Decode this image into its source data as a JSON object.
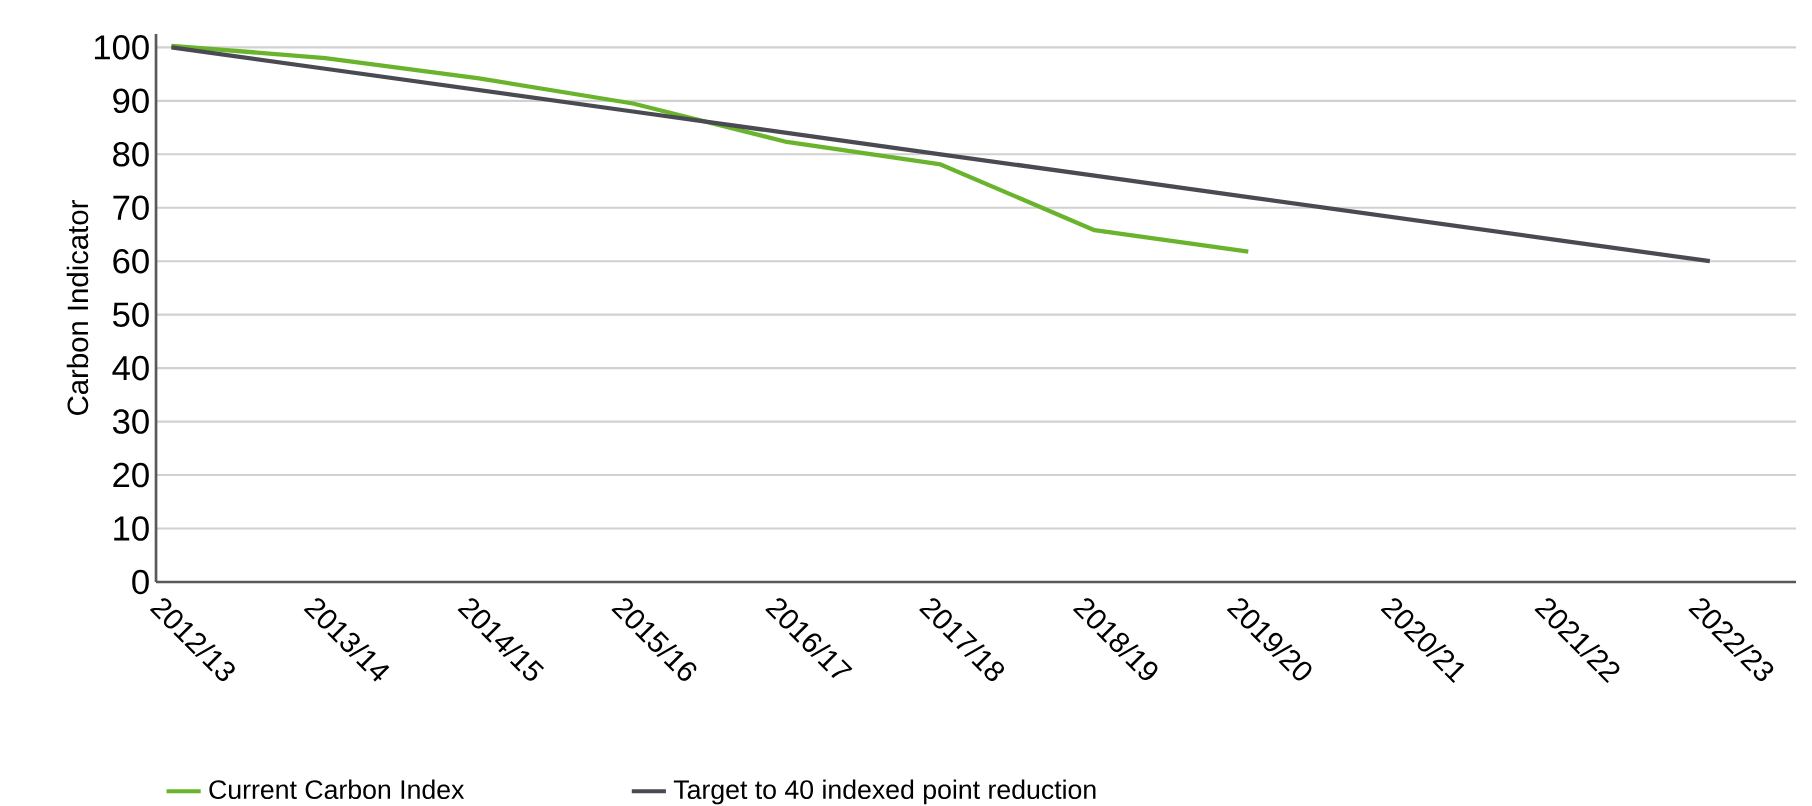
{
  "chart_data": {
    "type": "line",
    "ylabel": "Carbon Indicator",
    "categories": [
      "2012/13",
      "2013/14",
      "2014/15",
      "2015/16",
      "2016/17",
      "2017/18",
      "2018/19",
      "2019/20",
      "2020/21",
      "2021/22",
      "2022/23"
    ],
    "series": [
      {
        "name": "Current Carbon Index",
        "color": "#6ab42d",
        "values": [
          100.3,
          98,
          94.2,
          89.5,
          82.3,
          78.1,
          65.8,
          61.8,
          null,
          null,
          null
        ]
      },
      {
        "name": "Target to 40 indexed point reduction",
        "color": "#4a4a52",
        "values": [
          100,
          96,
          92,
          88,
          84,
          80,
          76,
          72,
          68,
          64,
          60
        ]
      }
    ],
    "ylim": [
      0,
      102.5
    ],
    "yticks": [
      0,
      10,
      20,
      30,
      40,
      50,
      60,
      70,
      80,
      90,
      100
    ],
    "grid": "y",
    "legend": "bottom left",
    "marker": "none",
    "line_style": "solid"
  }
}
